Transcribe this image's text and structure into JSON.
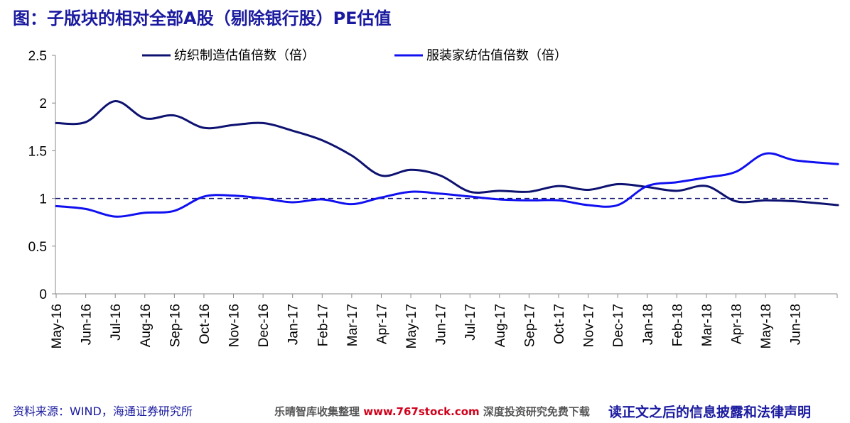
{
  "title": "图：子版块的相对全部A股（剔除银行股）PE估值",
  "source": "资料来源：WIND，海通证券研究所",
  "watermark": {
    "prefix": "乐晴智库收集整理 ",
    "url": "www.767stock.com",
    "suffix": " 深度投资研究免费下载"
  },
  "disclaimer": "读正文之后的信息披露和法律声明",
  "colors": {
    "series1": "#0d1270",
    "series2": "#1010f0",
    "reference": "#0d1270",
    "title": "#1a1aa0"
  },
  "chart_data": {
    "type": "line",
    "title": "图：子版块的相对全部A股（剔除银行股）PE估值",
    "xlabel": "",
    "ylabel": "",
    "ylim": [
      0,
      2.5
    ],
    "yticks": [
      "0",
      "0.5",
      "1",
      "1.5",
      "2",
      "2.5"
    ],
    "categories": [
      "May-16",
      "Jun-16",
      "Jul-16",
      "Aug-16",
      "Sep-16",
      "Oct-16",
      "Nov-16",
      "Dec-16",
      "Jan-17",
      "Feb-17",
      "Mar-17",
      "Apr-17",
      "May-17",
      "Jun-17",
      "Jul-17",
      "Aug-17",
      "Sep-17",
      "Oct-17",
      "Nov-17",
      "Dec-17",
      "Jan-18",
      "Feb-18",
      "Mar-18",
      "Apr-18",
      "May-18",
      "Jun-18"
    ],
    "series": [
      {
        "name": "纺织制造估值倍数（倍）",
        "values": [
          1.79,
          1.8,
          2.02,
          1.84,
          1.87,
          1.74,
          1.77,
          1.79,
          1.71,
          1.61,
          1.45,
          1.24,
          1.3,
          1.24,
          1.07,
          1.08,
          1.07,
          1.13,
          1.09,
          1.15,
          1.12,
          1.08,
          1.13,
          0.97,
          0.98,
          0.97
        ],
        "end_value": 0.93
      },
      {
        "name": "服装家纺估值倍数（倍）",
        "values": [
          0.92,
          0.89,
          0.81,
          0.85,
          0.87,
          1.02,
          1.03,
          1.0,
          0.96,
          0.99,
          0.94,
          1.01,
          1.07,
          1.05,
          1.02,
          0.99,
          0.98,
          0.98,
          0.93,
          0.93,
          1.13,
          1.17,
          1.22,
          1.28,
          1.47,
          1.4
        ],
        "end_value": 1.36
      }
    ],
    "reference_line": 1.0,
    "legend_position": "top",
    "grid": false
  }
}
